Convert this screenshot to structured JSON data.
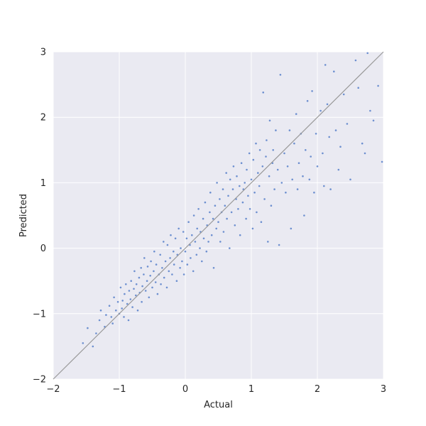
{
  "chart_data": {
    "type": "scatter",
    "title": "",
    "xlabel": "Actual",
    "ylabel": "Predicted",
    "xlim": [
      -2,
      3
    ],
    "ylim": [
      -2,
      3
    ],
    "xticks": [
      -2,
      -1,
      0,
      1,
      2,
      3
    ],
    "yticks": [
      -2,
      -1,
      0,
      1,
      2,
      3
    ],
    "xtick_labels": [
      "−2",
      "−1",
      "0",
      "1",
      "2",
      "3"
    ],
    "ytick_labels": [
      "−2",
      "−1",
      "0",
      "1",
      "2",
      "3"
    ],
    "grid": true,
    "background": "#eaeaf2",
    "point_color": "#4472c4",
    "reference_line": {
      "from": [
        -2,
        -2
      ],
      "to": [
        3,
        3
      ],
      "color": "#999999"
    },
    "series": [
      {
        "points": [
          [
            -1.55,
            -1.45
          ],
          [
            -1.48,
            -1.22
          ],
          [
            -1.4,
            -1.5
          ],
          [
            -1.35,
            -1.3
          ],
          [
            -1.3,
            -1.1
          ],
          [
            -1.28,
            -0.95
          ],
          [
            -1.22,
            -1.2
          ],
          [
            -1.2,
            -1.02
          ],
          [
            -1.15,
            -0.88
          ],
          [
            -1.12,
            -1.05
          ],
          [
            -1.1,
            -1.15
          ],
          [
            -1.08,
            -0.75
          ],
          [
            -1.05,
            -0.95
          ],
          [
            -1.02,
            -0.82
          ],
          [
            -1.0,
            -1.0
          ],
          [
            -0.98,
            -0.6
          ],
          [
            -0.96,
            -0.92
          ],
          [
            -0.95,
            -0.8
          ],
          [
            -0.93,
            -1.05
          ],
          [
            -0.92,
            -0.7
          ],
          [
            -0.9,
            -0.55
          ],
          [
            -0.88,
            -0.85
          ],
          [
            -0.86,
            -1.1
          ],
          [
            -0.85,
            -0.65
          ],
          [
            -0.83,
            -0.78
          ],
          [
            -0.82,
            -0.5
          ],
          [
            -0.8,
            -0.9
          ],
          [
            -0.78,
            -0.62
          ],
          [
            -0.77,
            -0.35
          ],
          [
            -0.75,
            -0.72
          ],
          [
            -0.74,
            -0.55
          ],
          [
            -0.72,
            -0.95
          ],
          [
            -0.7,
            -0.45
          ],
          [
            -0.69,
            -0.68
          ],
          [
            -0.67,
            -0.3
          ],
          [
            -0.66,
            -0.82
          ],
          [
            -0.65,
            -0.58
          ],
          [
            -0.63,
            -0.4
          ],
          [
            -0.62,
            -0.15
          ],
          [
            -0.6,
            -0.65
          ],
          [
            -0.58,
            -0.5
          ],
          [
            -0.57,
            -0.28
          ],
          [
            -0.55,
            -0.75
          ],
          [
            -0.53,
            -0.42
          ],
          [
            -0.52,
            -0.2
          ],
          [
            -0.5,
            -0.6
          ],
          [
            -0.48,
            -0.35
          ],
          [
            -0.47,
            -0.05
          ],
          [
            -0.45,
            -0.52
          ],
          [
            -0.44,
            -0.25
          ],
          [
            -0.42,
            -0.7
          ],
          [
            -0.4,
            -0.4
          ],
          [
            -0.38,
            -0.1
          ],
          [
            -0.37,
            -0.55
          ],
          [
            -0.35,
            -0.3
          ],
          [
            -0.33,
            0.1
          ],
          [
            -0.32,
            -0.45
          ],
          [
            -0.3,
            -0.2
          ],
          [
            -0.28,
            -0.6
          ],
          [
            -0.27,
            0.05
          ],
          [
            -0.25,
            -0.35
          ],
          [
            -0.23,
            -0.15
          ],
          [
            -0.22,
            0.2
          ],
          [
            -0.2,
            -0.4
          ],
          [
            -0.18,
            -0.05
          ],
          [
            -0.17,
            -0.25
          ],
          [
            -0.15,
            0.15
          ],
          [
            -0.13,
            -0.5
          ],
          [
            -0.12,
            -0.1
          ],
          [
            -0.1,
            0.3
          ],
          [
            -0.08,
            -0.3
          ],
          [
            -0.07,
            0.0
          ],
          [
            -0.05,
            -0.2
          ],
          [
            -0.03,
            0.25
          ],
          [
            -0.02,
            -0.4
          ],
          [
            0.0,
            -0.05
          ],
          [
            0.02,
            0.15
          ],
          [
            0.03,
            -0.25
          ],
          [
            0.05,
            0.4
          ],
          [
            0.07,
            0.05
          ],
          [
            0.08,
            -0.15
          ],
          [
            0.1,
            0.2
          ],
          [
            0.12,
            -0.35
          ],
          [
            0.13,
            0.5
          ],
          [
            0.15,
            0.1
          ],
          [
            0.17,
            -0.1
          ],
          [
            0.18,
            0.3
          ],
          [
            0.2,
            0.6
          ],
          [
            0.22,
            0.0
          ],
          [
            0.23,
            0.25
          ],
          [
            0.25,
            -0.2
          ],
          [
            0.27,
            0.45
          ],
          [
            0.28,
            0.15
          ],
          [
            0.3,
            0.7
          ],
          [
            0.32,
            -0.05
          ],
          [
            0.33,
            0.35
          ],
          [
            0.35,
            0.1
          ],
          [
            0.37,
            0.55
          ],
          [
            0.38,
            0.85
          ],
          [
            0.4,
            0.2
          ],
          [
            0.42,
            0.45
          ],
          [
            0.43,
            -0.3
          ],
          [
            0.45,
            0.65
          ],
          [
            0.47,
            0.3
          ],
          [
            0.48,
            1.0
          ],
          [
            0.5,
            0.4
          ],
          [
            0.52,
            0.75
          ],
          [
            0.53,
            0.1
          ],
          [
            0.55,
            0.55
          ],
          [
            0.57,
            0.9
          ],
          [
            0.58,
            0.25
          ],
          [
            0.6,
            0.65
          ],
          [
            0.62,
            1.15
          ],
          [
            0.63,
            0.45
          ],
          [
            0.65,
            0.8
          ],
          [
            0.67,
            0.0
          ],
          [
            0.68,
            1.05
          ],
          [
            0.7,
            0.55
          ],
          [
            0.72,
            0.9
          ],
          [
            0.73,
            1.25
          ],
          [
            0.75,
            0.35
          ],
          [
            0.77,
            0.75
          ],
          [
            0.78,
            1.1
          ],
          [
            0.8,
            0.6
          ],
          [
            0.82,
            0.95
          ],
          [
            0.83,
            0.2
          ],
          [
            0.85,
            1.3
          ],
          [
            0.87,
            0.7
          ],
          [
            0.88,
            0.9
          ],
          [
            0.9,
            1.0
          ],
          [
            0.92,
            0.45
          ],
          [
            0.93,
            1.2
          ],
          [
            0.95,
            0.8
          ],
          [
            0.97,
            1.45
          ],
          [
            0.98,
            0.6
          ],
          [
            1.0,
            1.05
          ],
          [
            1.02,
            0.3
          ],
          [
            1.03,
            1.35
          ],
          [
            1.05,
            0.85
          ],
          [
            1.07,
            1.6
          ],
          [
            1.08,
            0.55
          ],
          [
            1.1,
            1.15
          ],
          [
            1.12,
            0.95
          ],
          [
            1.13,
            1.5
          ],
          [
            1.15,
            0.4
          ],
          [
            1.17,
            1.25
          ],
          [
            1.18,
            2.38
          ],
          [
            1.2,
            0.75
          ],
          [
            1.22,
            1.4
          ],
          [
            1.23,
            1.65
          ],
          [
            1.25,
            0.1
          ],
          [
            1.27,
            1.1
          ],
          [
            1.28,
            1.95
          ],
          [
            1.3,
            0.65
          ],
          [
            1.32,
            1.3
          ],
          [
            1.33,
            1.5
          ],
          [
            1.35,
            0.9
          ],
          [
            1.37,
            1.8
          ],
          [
            1.4,
            1.2
          ],
          [
            1.42,
            0.05
          ],
          [
            1.44,
            2.65
          ],
          [
            1.46,
            1.0
          ],
          [
            1.5,
            1.45
          ],
          [
            1.52,
            0.85
          ],
          [
            1.55,
            1.25
          ],
          [
            1.58,
            1.8
          ],
          [
            1.6,
            0.3
          ],
          [
            1.62,
            1.05
          ],
          [
            1.65,
            1.6
          ],
          [
            1.68,
            2.05
          ],
          [
            1.7,
            0.9
          ],
          [
            1.72,
            1.3
          ],
          [
            1.75,
            1.75
          ],
          [
            1.78,
            1.1
          ],
          [
            1.8,
            0.5
          ],
          [
            1.82,
            1.5
          ],
          [
            1.85,
            2.25
          ],
          [
            1.88,
            1.05
          ],
          [
            1.9,
            1.4
          ],
          [
            1.92,
            2.4
          ],
          [
            1.95,
            0.85
          ],
          [
            1.98,
            1.75
          ],
          [
            2.0,
            1.25
          ],
          [
            2.05,
            2.1
          ],
          [
            2.08,
            1.45
          ],
          [
            2.1,
            0.95
          ],
          [
            2.12,
            2.8
          ],
          [
            2.15,
            2.2
          ],
          [
            2.18,
            1.7
          ],
          [
            2.2,
            0.9
          ],
          [
            2.25,
            2.7
          ],
          [
            2.28,
            1.8
          ],
          [
            2.32,
            1.2
          ],
          [
            2.35,
            1.55
          ],
          [
            2.4,
            2.35
          ],
          [
            2.45,
            1.9
          ],
          [
            2.5,
            1.05
          ],
          [
            2.58,
            2.87
          ],
          [
            2.62,
            2.45
          ],
          [
            2.68,
            1.6
          ],
          [
            2.72,
            1.45
          ],
          [
            2.76,
            2.98
          ],
          [
            2.8,
            2.1
          ],
          [
            2.85,
            1.95
          ],
          [
            2.92,
            2.48
          ],
          [
            2.98,
            1.32
          ]
        ]
      }
    ]
  }
}
